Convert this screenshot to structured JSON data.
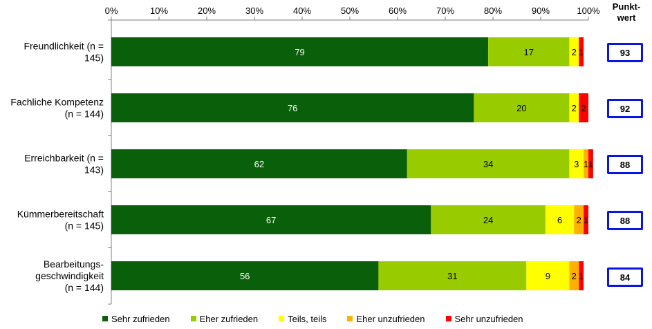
{
  "chart_data": {
    "type": "bar",
    "orientation": "horizontal",
    "stacked": true,
    "categories": [
      [
        "Freundlichkeit (n =",
        "145)"
      ],
      [
        "Fachliche Kompetenz",
        "(n = 144)"
      ],
      [
        "Erreichbarkeit (n =",
        "143)"
      ],
      [
        "Kümmerbereitschaft",
        "(n = 145)"
      ],
      [
        "Bearbeitungs-",
        "geschwindigkeit",
        "(n = 144)"
      ]
    ],
    "series": [
      {
        "name": "Sehr zufrieden",
        "color": "#0a5f0a",
        "label_color": "#ffffff",
        "values": [
          79,
          76,
          62,
          67,
          56
        ]
      },
      {
        "name": "Eher zufrieden",
        "color": "#99cc00",
        "label_color": "#000000",
        "values": [
          17,
          20,
          34,
          24,
          31
        ]
      },
      {
        "name": "Teils, teils",
        "color": "#ffff00",
        "label_color": "#000000",
        "values": [
          2,
          2,
          3,
          6,
          9
        ]
      },
      {
        "name": "Eher unzufrieden",
        "color": "#ffb000",
        "label_color": "#000000",
        "values": [
          0,
          0,
          1,
          2,
          2
        ]
      },
      {
        "name": "Sehr unzufrieden",
        "color": "#ff0000",
        "label_color": "#000000",
        "values": [
          1,
          2,
          1,
          1,
          1
        ]
      }
    ],
    "xlim": [
      0,
      100
    ],
    "x_ticks": [
      "0%",
      "10%",
      "20%",
      "30%",
      "40%",
      "50%",
      "60%",
      "70%",
      "80%",
      "90%",
      "100%"
    ],
    "legend_position": "bottom",
    "grid": false
  },
  "punktwert": {
    "header": [
      "Punkt-",
      "wert"
    ],
    "values": [
      "93",
      "92",
      "88",
      "88",
      "84"
    ]
  }
}
